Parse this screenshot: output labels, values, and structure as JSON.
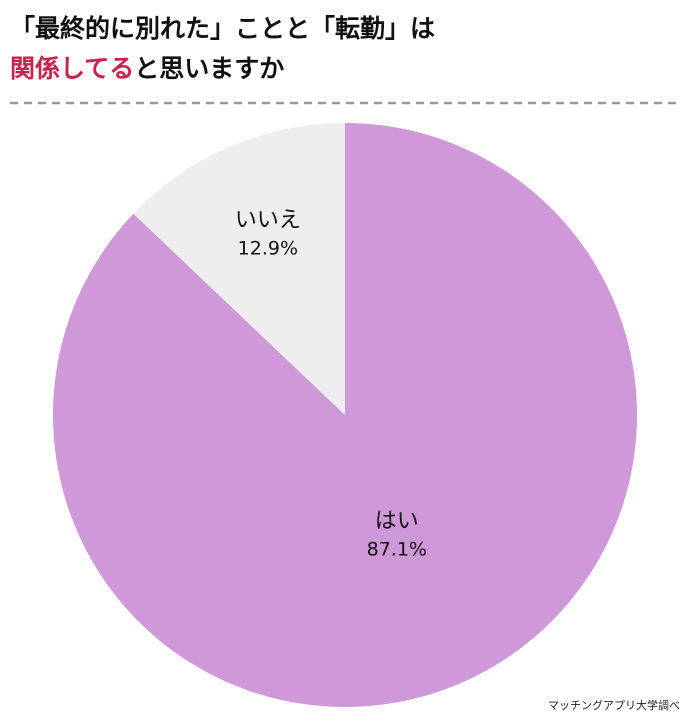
{
  "chart_data": {
    "type": "pie",
    "title": {
      "line1": "「最終的に別れた」ことと「転勤」は",
      "highlight": "関係してる",
      "rest": "と思いますか"
    },
    "categories": [
      "はい",
      "いいえ"
    ],
    "values": [
      87.1,
      12.9
    ],
    "value_labels": [
      "87.1%",
      "12.9%"
    ],
    "colors": [
      "#cf98d8",
      "#eeeeee"
    ],
    "source": "マッチングアプリ大学調べ"
  }
}
